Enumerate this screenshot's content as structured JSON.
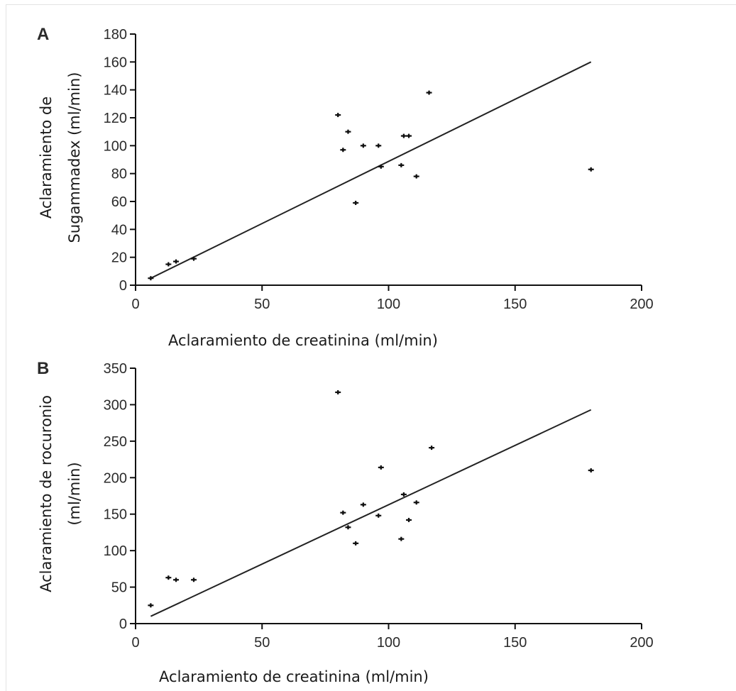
{
  "chart_data": [
    {
      "type": "scatter",
      "panel_label": "A",
      "xlabel": "Aclaramiento de creatinina (ml/min)",
      "ylabel_lines": [
        "Aclaramiento  de",
        "Sugammadex (ml/min)"
      ],
      "xlim": [
        0,
        200
      ],
      "ylim": [
        0,
        180
      ],
      "x_ticks": [
        0,
        50,
        100,
        150,
        200
      ],
      "y_ticks": [
        0,
        20,
        40,
        60,
        80,
        100,
        120,
        140,
        160,
        180
      ],
      "grid": false,
      "points": [
        {
          "x": 6,
          "y": 5
        },
        {
          "x": 13,
          "y": 15
        },
        {
          "x": 16,
          "y": 17
        },
        {
          "x": 23,
          "y": 19
        },
        {
          "x": 80,
          "y": 122
        },
        {
          "x": 82,
          "y": 97
        },
        {
          "x": 84,
          "y": 110
        },
        {
          "x": 87,
          "y": 59
        },
        {
          "x": 90,
          "y": 100
        },
        {
          "x": 96,
          "y": 100
        },
        {
          "x": 97,
          "y": 85
        },
        {
          "x": 105,
          "y": 86
        },
        {
          "x": 106,
          "y": 107
        },
        {
          "x": 108,
          "y": 107
        },
        {
          "x": 111,
          "y": 78
        },
        {
          "x": 116,
          "y": 138
        },
        {
          "x": 180,
          "y": 83
        }
      ],
      "regression_line": [
        {
          "x": 6,
          "y": 5
        },
        {
          "x": 180,
          "y": 160
        }
      ]
    },
    {
      "type": "scatter",
      "panel_label": "B",
      "xlabel": "Aclaramiento de creatinina (ml/min)",
      "ylabel_lines": [
        "Aclaramiento  de  rocuronio",
        "(ml/min)"
      ],
      "xlim": [
        0,
        200
      ],
      "ylim": [
        0,
        350
      ],
      "x_ticks": [
        0,
        50,
        100,
        150,
        200
      ],
      "y_ticks": [
        0,
        50,
        100,
        150,
        200,
        250,
        300,
        350
      ],
      "grid": false,
      "points": [
        {
          "x": 6,
          "y": 25
        },
        {
          "x": 13,
          "y": 63
        },
        {
          "x": 16,
          "y": 60
        },
        {
          "x": 23,
          "y": 60
        },
        {
          "x": 80,
          "y": 317
        },
        {
          "x": 82,
          "y": 152
        },
        {
          "x": 84,
          "y": 132
        },
        {
          "x": 87,
          "y": 110
        },
        {
          "x": 90,
          "y": 163
        },
        {
          "x": 96,
          "y": 148
        },
        {
          "x": 97,
          "y": 214
        },
        {
          "x": 105,
          "y": 116
        },
        {
          "x": 106,
          "y": 177
        },
        {
          "x": 108,
          "y": 142
        },
        {
          "x": 111,
          "y": 166
        },
        {
          "x": 117,
          "y": 241
        },
        {
          "x": 180,
          "y": 210
        }
      ],
      "regression_line": [
        {
          "x": 6,
          "y": 10
        },
        {
          "x": 180,
          "y": 293
        }
      ]
    }
  ]
}
